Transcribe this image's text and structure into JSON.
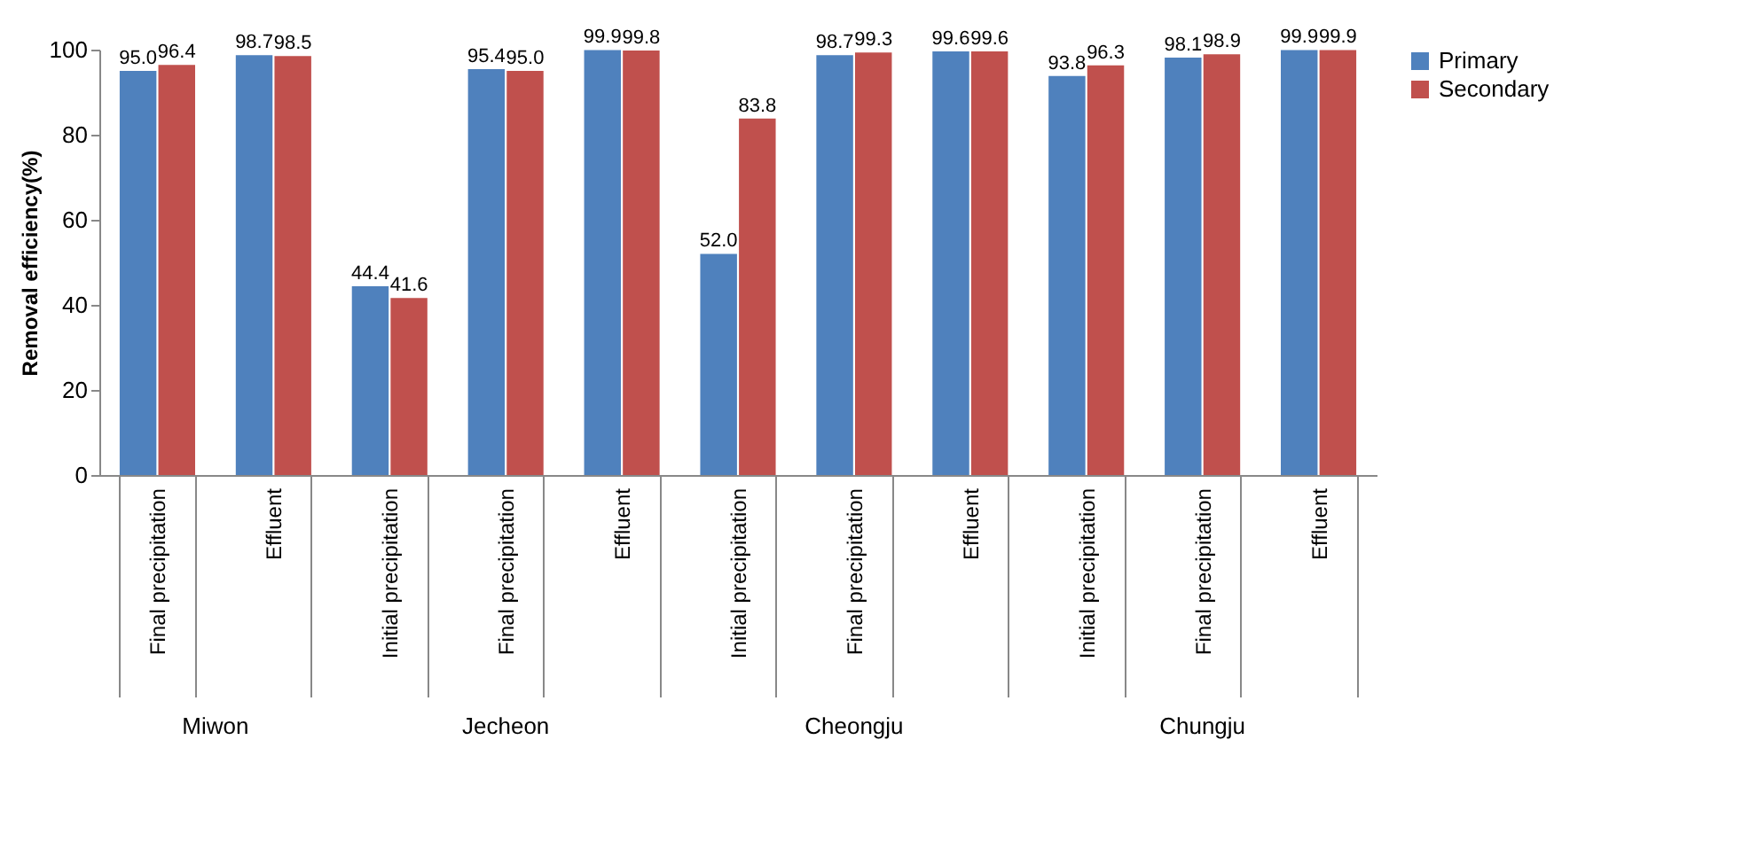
{
  "chart_data": {
    "type": "bar",
    "ylabel": "Removal efficiency(%)",
    "categories": [
      "Final precipitation",
      "Effluent",
      "Initial precipitation",
      "Final precipitation",
      "Effluent",
      "Initial precipitation",
      "Final precipitation",
      "Effluent",
      "Initial precipitation",
      "Final precipitation",
      "Effluent"
    ],
    "series": [
      {
        "name": "Primary",
        "color": "#4f81bd",
        "values": [
          95.0,
          98.7,
          44.4,
          95.4,
          99.9,
          52.0,
          98.7,
          99.6,
          93.8,
          98.1,
          99.9
        ],
        "value_labels": [
          "95.0",
          "98.7",
          "44.4",
          "95.4",
          "99.9",
          "52.0",
          "98.7",
          "99.6",
          "93.8",
          "98.1",
          "99.9"
        ]
      },
      {
        "name": "Secondary",
        "color": "#c0504d",
        "values": [
          96.4,
          98.5,
          41.6,
          95.0,
          99.8,
          83.8,
          99.3,
          99.6,
          96.3,
          98.9,
          99.9
        ],
        "value_labels": [
          "96.4",
          "98.5",
          "41.6",
          "95.0",
          "99.8",
          "83.8",
          "99.3",
          "99.6",
          "96.3",
          "98.9",
          "99.9"
        ]
      }
    ],
    "ylim": [
      0,
      100
    ],
    "yticks": [
      0,
      20,
      40,
      60,
      80,
      100
    ],
    "grid": false,
    "legend": "right",
    "annotations": [
      "Miwon",
      "Jecheon",
      "Cheongju",
      "Chungju"
    ]
  }
}
